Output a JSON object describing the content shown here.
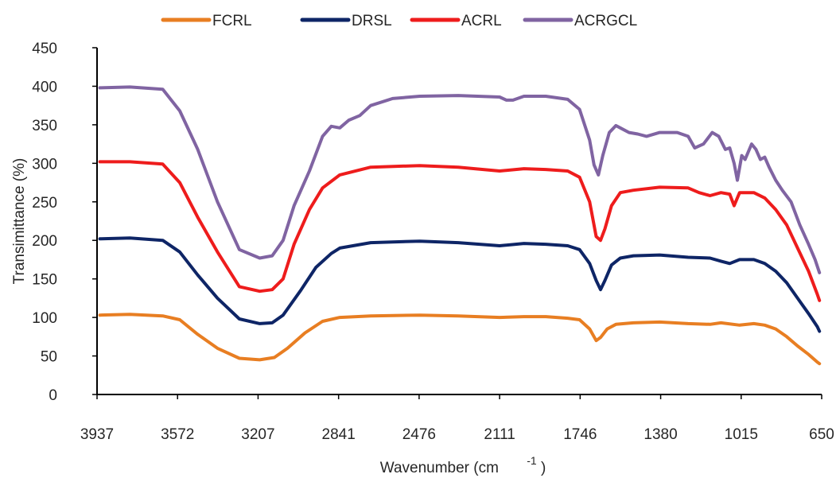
{
  "chart_data": {
    "type": "line",
    "title": "",
    "xlabel": "Wavenumber (cm",
    "xlabel_sup": "-1",
    "xlabel_close": ")",
    "ylabel": "Transimittance (%)",
    "xlim": [
      3950,
      640
    ],
    "ylim": [
      0,
      450
    ],
    "x_reversed": true,
    "x_ticks": [
      "3937",
      "3572",
      "3207",
      "2841",
      "2476",
      "2111",
      "1746",
      "1380",
      "1015",
      "650"
    ],
    "y_ticks": [
      "0",
      "50",
      "100",
      "150",
      "200",
      "250",
      "300",
      "350",
      "400",
      "450"
    ],
    "legend_position": "top",
    "grid": false,
    "series": [
      {
        "name": "FCRL",
        "color": "#E87E22",
        "points": [
          [
            3937,
            103
          ],
          [
            3800,
            104
          ],
          [
            3650,
            102
          ],
          [
            3572,
            97
          ],
          [
            3490,
            78
          ],
          [
            3400,
            60
          ],
          [
            3300,
            47
          ],
          [
            3207,
            45
          ],
          [
            3140,
            48
          ],
          [
            3080,
            60
          ],
          [
            3000,
            80
          ],
          [
            2920,
            95
          ],
          [
            2841,
            100
          ],
          [
            2700,
            102
          ],
          [
            2476,
            103
          ],
          [
            2300,
            102
          ],
          [
            2111,
            100
          ],
          [
            2000,
            101
          ],
          [
            1900,
            101
          ],
          [
            1800,
            99
          ],
          [
            1746,
            97
          ],
          [
            1700,
            85
          ],
          [
            1670,
            70
          ],
          [
            1650,
            74
          ],
          [
            1620,
            85
          ],
          [
            1580,
            91
          ],
          [
            1500,
            93
          ],
          [
            1380,
            94
          ],
          [
            1250,
            92
          ],
          [
            1150,
            91
          ],
          [
            1100,
            93
          ],
          [
            1015,
            90
          ],
          [
            950,
            92
          ],
          [
            900,
            90
          ],
          [
            850,
            85
          ],
          [
            800,
            75
          ],
          [
            750,
            63
          ],
          [
            700,
            52
          ],
          [
            660,
            42
          ],
          [
            650,
            40
          ]
        ]
      },
      {
        "name": "DRSL",
        "color": "#0E2566",
        "points": [
          [
            3937,
            202
          ],
          [
            3800,
            203
          ],
          [
            3650,
            200
          ],
          [
            3572,
            185
          ],
          [
            3490,
            155
          ],
          [
            3400,
            125
          ],
          [
            3300,
            98
          ],
          [
            3207,
            92
          ],
          [
            3150,
            93
          ],
          [
            3100,
            103
          ],
          [
            3020,
            135
          ],
          [
            2950,
            165
          ],
          [
            2880,
            183
          ],
          [
            2841,
            190
          ],
          [
            2700,
            197
          ],
          [
            2476,
            199
          ],
          [
            2300,
            197
          ],
          [
            2111,
            193
          ],
          [
            2000,
            196
          ],
          [
            1900,
            195
          ],
          [
            1800,
            193
          ],
          [
            1746,
            188
          ],
          [
            1700,
            170
          ],
          [
            1670,
            148
          ],
          [
            1650,
            136
          ],
          [
            1630,
            148
          ],
          [
            1600,
            168
          ],
          [
            1560,
            177
          ],
          [
            1500,
            180
          ],
          [
            1380,
            181
          ],
          [
            1250,
            178
          ],
          [
            1150,
            177
          ],
          [
            1100,
            173
          ],
          [
            1060,
            170
          ],
          [
            1015,
            175
          ],
          [
            950,
            175
          ],
          [
            900,
            170
          ],
          [
            850,
            160
          ],
          [
            800,
            145
          ],
          [
            750,
            125
          ],
          [
            700,
            105
          ],
          [
            660,
            88
          ],
          [
            650,
            82
          ]
        ]
      },
      {
        "name": "ACRL",
        "color": "#EE1C1C",
        "points": [
          [
            3937,
            302
          ],
          [
            3800,
            302
          ],
          [
            3650,
            299
          ],
          [
            3572,
            275
          ],
          [
            3490,
            230
          ],
          [
            3400,
            185
          ],
          [
            3300,
            140
          ],
          [
            3207,
            134
          ],
          [
            3150,
            136
          ],
          [
            3100,
            150
          ],
          [
            3050,
            195
          ],
          [
            2980,
            240
          ],
          [
            2920,
            268
          ],
          [
            2841,
            285
          ],
          [
            2700,
            295
          ],
          [
            2476,
            297
          ],
          [
            2300,
            295
          ],
          [
            2111,
            290
          ],
          [
            2000,
            293
          ],
          [
            1900,
            292
          ],
          [
            1800,
            290
          ],
          [
            1746,
            282
          ],
          [
            1700,
            250
          ],
          [
            1670,
            205
          ],
          [
            1650,
            200
          ],
          [
            1630,
            215
          ],
          [
            1600,
            245
          ],
          [
            1560,
            262
          ],
          [
            1500,
            265
          ],
          [
            1380,
            269
          ],
          [
            1250,
            268
          ],
          [
            1200,
            262
          ],
          [
            1150,
            258
          ],
          [
            1100,
            262
          ],
          [
            1060,
            260
          ],
          [
            1040,
            245
          ],
          [
            1015,
            262
          ],
          [
            950,
            262
          ],
          [
            900,
            255
          ],
          [
            850,
            240
          ],
          [
            800,
            220
          ],
          [
            750,
            190
          ],
          [
            700,
            160
          ],
          [
            660,
            130
          ],
          [
            650,
            122
          ]
        ]
      },
      {
        "name": "ACRGCL",
        "color": "#8064A2",
        "points": [
          [
            3937,
            398
          ],
          [
            3800,
            399
          ],
          [
            3650,
            396
          ],
          [
            3572,
            368
          ],
          [
            3490,
            318
          ],
          [
            3400,
            250
          ],
          [
            3300,
            188
          ],
          [
            3207,
            177
          ],
          [
            3150,
            180
          ],
          [
            3100,
            200
          ],
          [
            3050,
            245
          ],
          [
            2980,
            290
          ],
          [
            2920,
            335
          ],
          [
            2880,
            348
          ],
          [
            2841,
            346
          ],
          [
            2800,
            356
          ],
          [
            2750,
            362
          ],
          [
            2700,
            375
          ],
          [
            2600,
            384
          ],
          [
            2476,
            387
          ],
          [
            2300,
            388
          ],
          [
            2111,
            386
          ],
          [
            2080,
            382
          ],
          [
            2050,
            382
          ],
          [
            2000,
            387
          ],
          [
            1900,
            387
          ],
          [
            1800,
            383
          ],
          [
            1746,
            370
          ],
          [
            1700,
            330
          ],
          [
            1680,
            298
          ],
          [
            1660,
            285
          ],
          [
            1640,
            310
          ],
          [
            1610,
            340
          ],
          [
            1580,
            349
          ],
          [
            1560,
            346
          ],
          [
            1520,
            340
          ],
          [
            1480,
            338
          ],
          [
            1440,
            335
          ],
          [
            1380,
            340
          ],
          [
            1300,
            340
          ],
          [
            1250,
            335
          ],
          [
            1220,
            320
          ],
          [
            1180,
            325
          ],
          [
            1140,
            340
          ],
          [
            1110,
            335
          ],
          [
            1080,
            318
          ],
          [
            1060,
            320
          ],
          [
            1040,
            300
          ],
          [
            1025,
            278
          ],
          [
            1005,
            310
          ],
          [
            990,
            305
          ],
          [
            960,
            325
          ],
          [
            940,
            318
          ],
          [
            920,
            305
          ],
          [
            900,
            308
          ],
          [
            880,
            295
          ],
          [
            850,
            278
          ],
          [
            820,
            265
          ],
          [
            780,
            250
          ],
          [
            740,
            220
          ],
          [
            700,
            195
          ],
          [
            670,
            175
          ],
          [
            650,
            158
          ]
        ]
      }
    ]
  }
}
